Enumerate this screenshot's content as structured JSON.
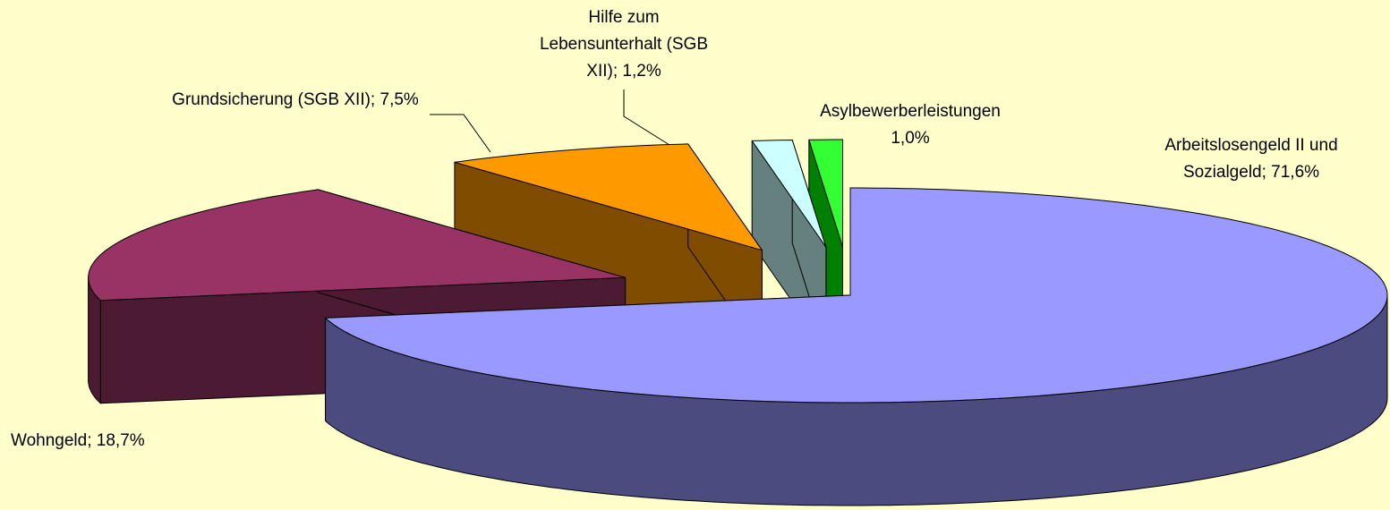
{
  "chart_data": {
    "type": "pie3d",
    "categories": [
      "Arbeitslosengeld II und Sozialgeld;",
      "Wohngeld;",
      "Grundsicherung (SGB XII);",
      "Hilfe zum Lebensunterhalt (SGB XII);",
      "Asylbewerberleistungen"
    ],
    "values": [
      71.6,
      18.7,
      7.5,
      1.2,
      1.0
    ],
    "value_labels": [
      "71,6%",
      "18,7%",
      "7,5%",
      "1,2%",
      "1,0%"
    ],
    "colors": [
      "#9999ff",
      "#993366",
      "#ff9900",
      "#ccffff",
      "#33ff33"
    ],
    "side_colors": [
      "#4b4b7f",
      "#4d1a33",
      "#804c00",
      "#668080",
      "#008000"
    ]
  }
}
